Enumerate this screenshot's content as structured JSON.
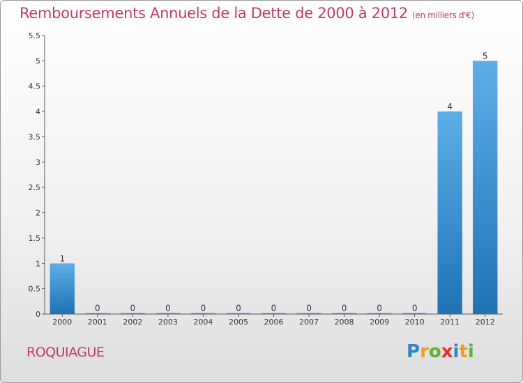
{
  "title": "Remboursements Annuels de la Dette de 2000 à 2012",
  "subtitle": "(en milliers d'€)",
  "place": "ROQUIAGUE",
  "logo": {
    "letters": [
      "P",
      "r",
      "o",
      "x",
      "i",
      "t",
      "i"
    ],
    "colors": [
      "#2f86c6",
      "#f39b1e",
      "#5fb130",
      "#e0322c",
      "#2f86c6",
      "#f39b1e",
      "#5fb130"
    ]
  },
  "chart_data": {
    "type": "bar",
    "categories": [
      "2000",
      "2001",
      "2002",
      "2003",
      "2004",
      "2005",
      "2006",
      "2007",
      "2008",
      "2009",
      "2010",
      "2011",
      "2012"
    ],
    "values": [
      1,
      0,
      0,
      0,
      0,
      0,
      0,
      0,
      0,
      0,
      0,
      4,
      5
    ],
    "data_labels": [
      "1",
      "0",
      "0",
      "0",
      "0",
      "0",
      "0",
      "0",
      "0",
      "0",
      "0",
      "4",
      "5"
    ],
    "ylim": [
      0,
      5.5
    ],
    "yticks": [
      0,
      0.5,
      1,
      1.5,
      2,
      2.5,
      3,
      3.5,
      4,
      4.5,
      5,
      5.5
    ],
    "ytick_labels": [
      "0",
      "0.5",
      "1",
      "1.5",
      "2",
      "2.5",
      "3",
      "3.5",
      "4",
      "4.5",
      "5",
      "5.5"
    ],
    "xlabel": "",
    "ylabel": "",
    "grid": false,
    "bar_color_top": "#5daee8",
    "bar_color_bottom": "#1f73b4"
  }
}
